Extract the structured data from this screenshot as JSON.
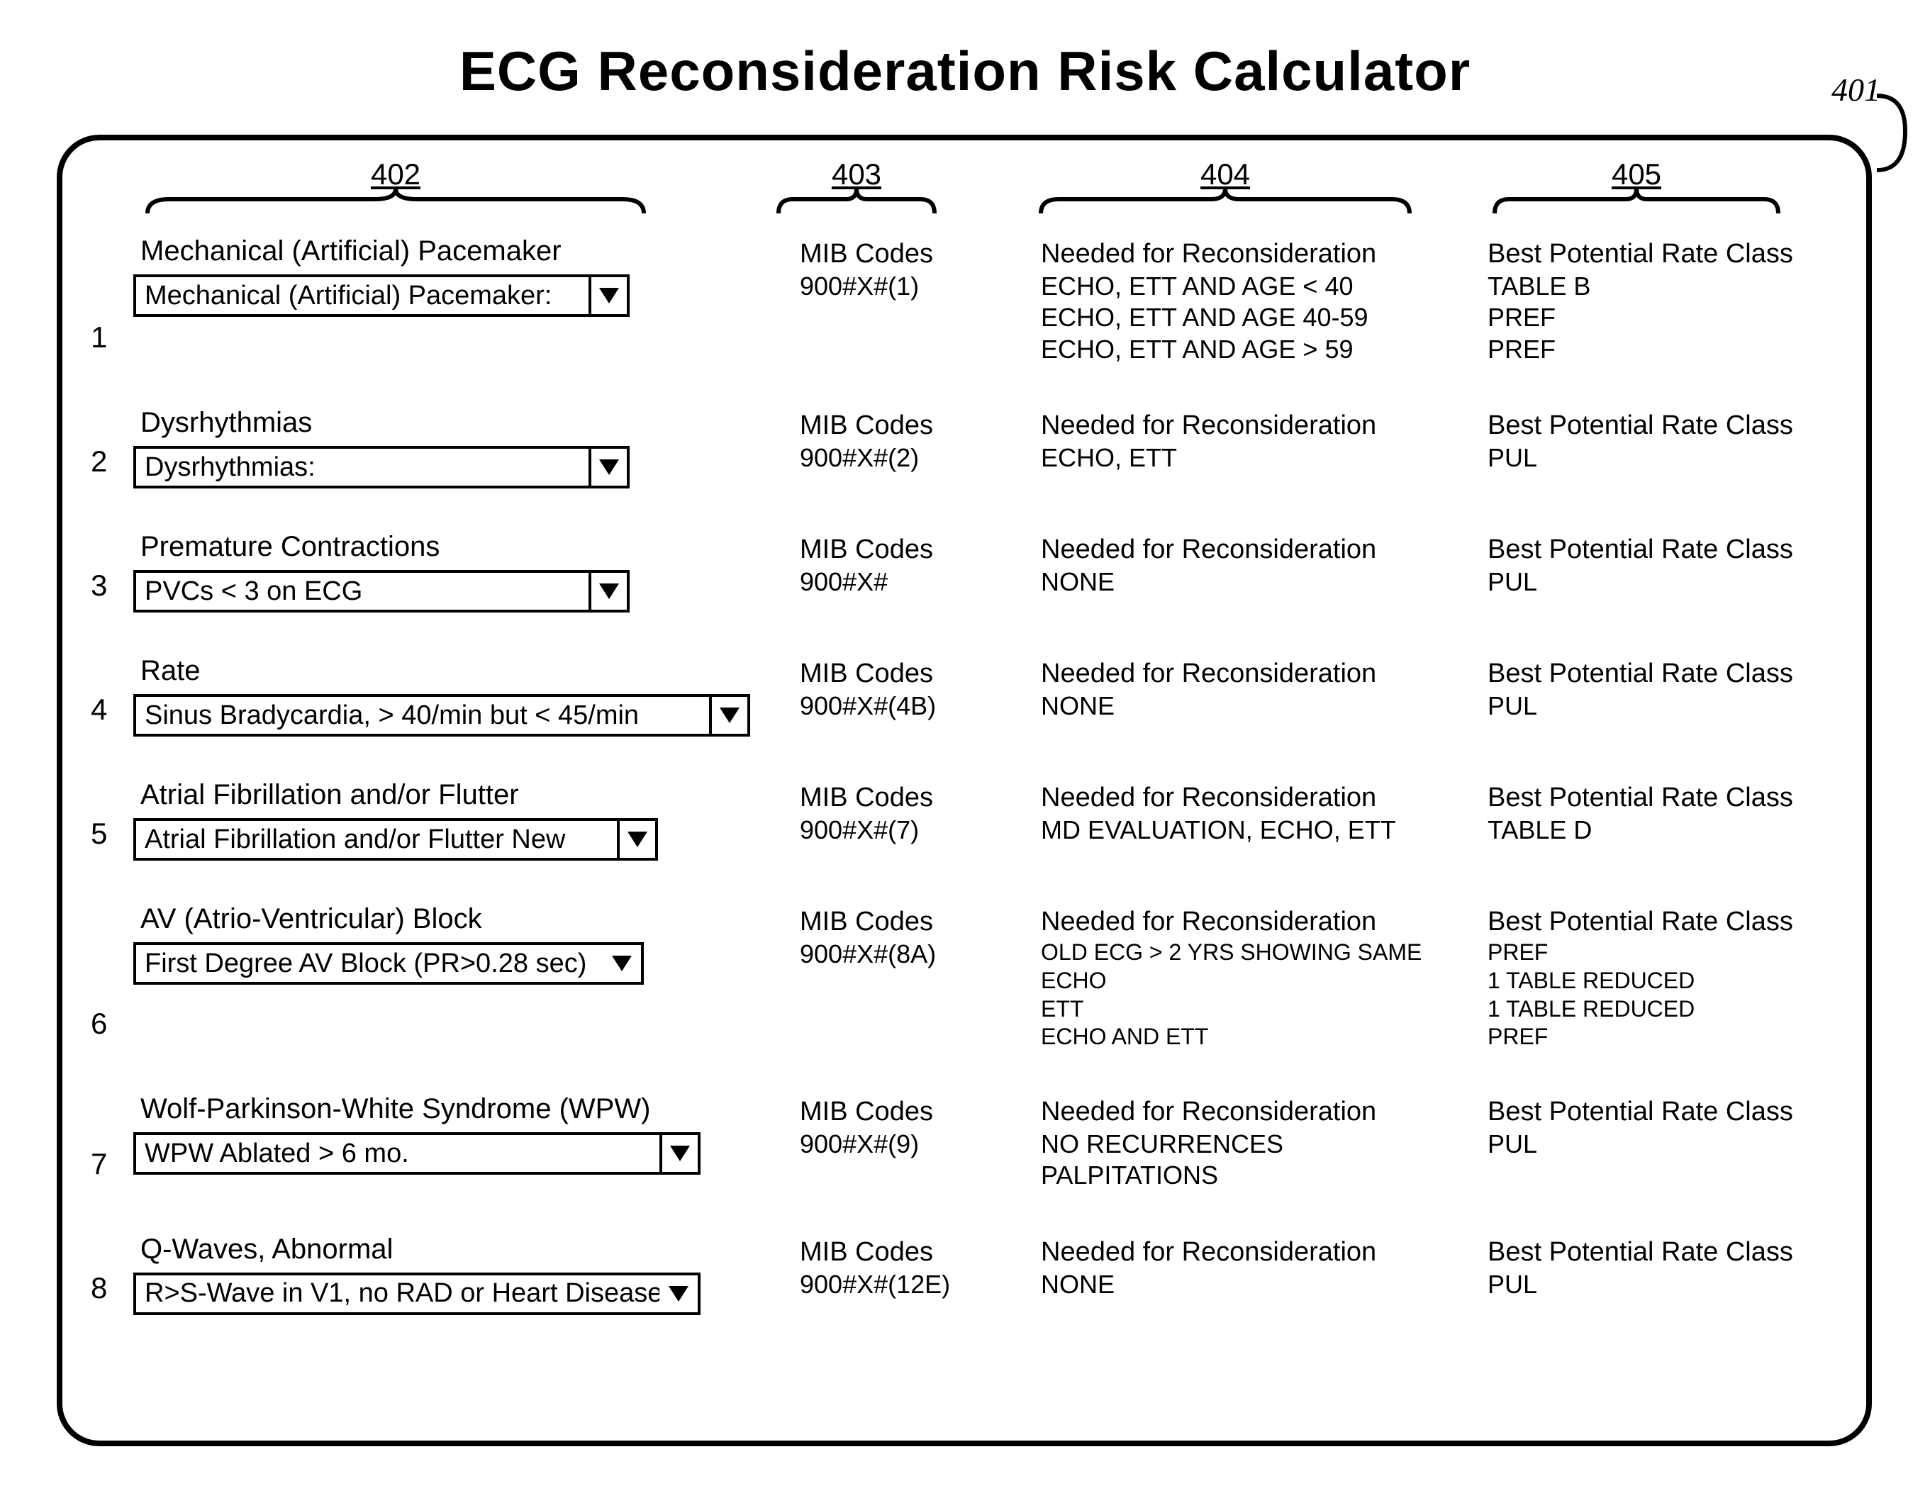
{
  "title": "ECG Reconsideration Risk Calculator",
  "calloutTopRight": "401",
  "columns": {
    "c402": {
      "label": "402",
      "brace_w": 720
    },
    "c403": {
      "label": "403",
      "brace_w": 240
    },
    "c404": {
      "label": "404",
      "brace_w": 540
    },
    "c405": {
      "label": "405",
      "brace_w": 420
    }
  },
  "mibHeader": "MIB Codes",
  "neededHeader": "Needed for Reconsideration",
  "bestHeader": "Best Potential Rate Class",
  "rows": [
    {
      "num": "1",
      "category": "Mechanical (Artificial) Pacemaker",
      "selected": "Mechanical (Artificial) Pacemaker:",
      "select_w": 700,
      "select_bar": true,
      "mib": [
        "900#X#(1)"
      ],
      "needed": [
        "ECHO, ETT AND AGE < 40",
        "ECHO, ETT AND AGE 40-59",
        "ECHO, ETT AND AGE > 59"
      ],
      "best": [
        "TABLE B",
        "PREF",
        "PREF"
      ]
    },
    {
      "num": "2",
      "category": "Dysrhythmias",
      "selected": "Dysrhythmias:",
      "select_w": 700,
      "select_bar": true,
      "mib": [
        "900#X#(2)"
      ],
      "needed": [
        "ECHO, ETT"
      ],
      "best": [
        "PUL"
      ]
    },
    {
      "num": "3",
      "category": "Premature Contractions",
      "selected": "PVCs < 3 on ECG",
      "select_w": 700,
      "select_bar": true,
      "mib": [
        "900#X#"
      ],
      "needed": [
        "NONE"
      ],
      "best": [
        "PUL"
      ]
    },
    {
      "num": "4",
      "category": "Rate",
      "selected": "Sinus Bradycardia, > 40/min but < 45/min",
      "select_w": 870,
      "select_bar": true,
      "mib": [
        "900#X#(4B)"
      ],
      "needed": [
        "NONE"
      ],
      "best": [
        "PUL"
      ]
    },
    {
      "num": "5",
      "category": "Atrial Fibrillation and/or Flutter",
      "selected": "Atrial Fibrillation and/or Flutter New",
      "select_w": 740,
      "select_bar": true,
      "mib": [
        "900#X#(7)"
      ],
      "needed": [
        "MD EVALUATION, ECHO, ETT"
      ],
      "best": [
        "TABLE D"
      ]
    },
    {
      "num": "6",
      "category": "AV (Atrio-Ventricular) Block",
      "selected": "First Degree AV Block (PR>0.28 sec)",
      "select_w": 720,
      "select_bar": false,
      "mib": [
        "900#X#(8A)"
      ],
      "needed": [
        "OLD ECG > 2 YRS SHOWING SAME",
        "ECHO",
        "ETT",
        "ECHO AND ETT"
      ],
      "needed_small": true,
      "best": [
        "PREF",
        "1 TABLE REDUCED",
        "1 TABLE REDUCED",
        "PREF"
      ],
      "best_small": true
    },
    {
      "num": "7",
      "category": "Wolf-Parkinson-White Syndrome (WPW)",
      "selected": "WPW  Ablated > 6 mo.",
      "select_w": 800,
      "select_bar": true,
      "mib": [
        "900#X#(9)"
      ],
      "needed": [
        "NO RECURRENCES",
        "PALPITATIONS"
      ],
      "best": [
        "PUL"
      ]
    },
    {
      "num": "8",
      "category": "Q-Waves, Abnormal",
      "selected": "R>S-Wave in V1, no RAD or Heart Disease",
      "select_w": 800,
      "select_bar": false,
      "mib": [
        "900#X#(12E)"
      ],
      "needed": [
        "NONE"
      ],
      "best": [
        "PUL"
      ]
    }
  ]
}
